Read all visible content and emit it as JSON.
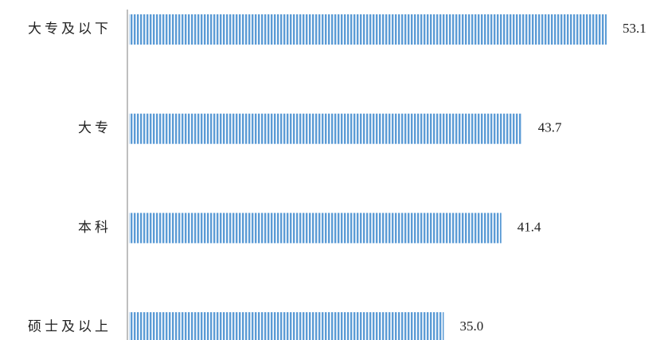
{
  "chart_data": {
    "type": "bar",
    "orientation": "horizontal",
    "categories": [
      "大专及以下",
      "大专",
      "本科",
      "硕士及以上"
    ],
    "values": [
      53.1,
      43.7,
      41.4,
      35.0
    ],
    "value_labels": [
      "53.1",
      "43.7",
      "41.4",
      "35.0"
    ],
    "color": "#5b9bd5"
  }
}
